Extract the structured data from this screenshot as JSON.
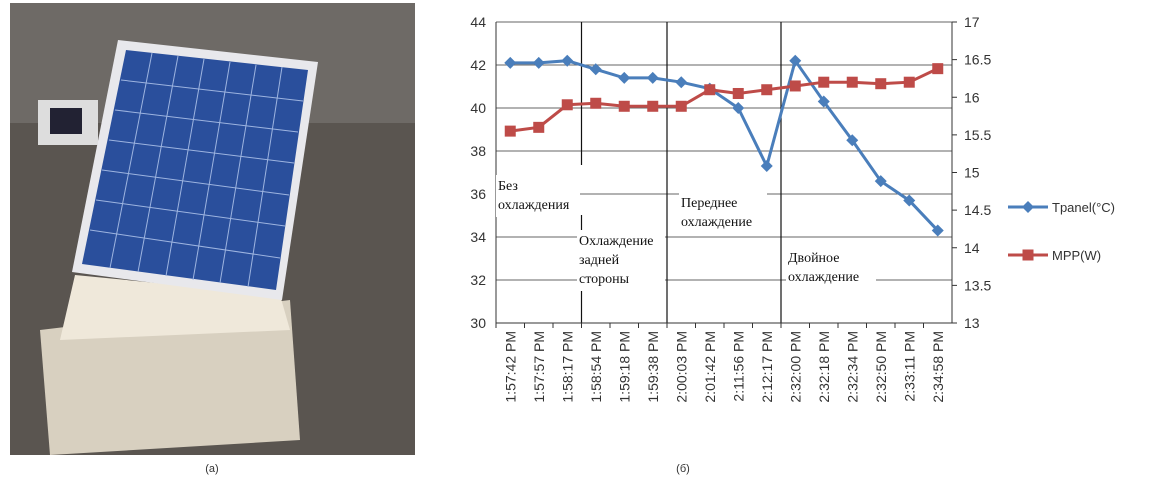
{
  "chart_data": {
    "type": "line",
    "categories": [
      "1:57:42 PM",
      "1:57:57 PM",
      "1:58:17 PM",
      "1:58:54 PM",
      "1:59:18 PM",
      "1:59:38 PM",
      "2:00:03 PM",
      "2:01:42 PM",
      "2:11:56 PM",
      "2:12:17 PM",
      "2:32:00 PM",
      "2:32:18 PM",
      "2:32:34 PM",
      "2:32:50 PM",
      "2:33:11 PM",
      "2:34:58 PM"
    ],
    "series": [
      {
        "name": "Tpanel(°C)",
        "color": "#4a7ebb",
        "values": [
          42.1,
          42.1,
          42.2,
          41.8,
          41.4,
          41.4,
          41.2,
          40.9,
          40.0,
          37.3,
          42.2,
          40.3,
          38.5,
          36.6,
          35.7,
          34.3
        ]
      },
      {
        "name": "MPP(W)",
        "color": "#be4b48",
        "axis": "y2",
        "values": [
          15.55,
          15.6,
          15.9,
          15.92,
          15.88,
          15.88,
          15.88,
          16.1,
          16.05,
          16.1,
          16.15,
          16.2,
          16.2,
          16.18,
          16.2,
          16.38
        ]
      }
    ],
    "ylim": [
      30,
      44
    ],
    "yticks": [
      30,
      32,
      34,
      36,
      38,
      40,
      42,
      44
    ],
    "y2lim": [
      13,
      17
    ],
    "y2ticks": [
      13,
      13.5,
      14,
      14.5,
      15,
      15.5,
      16,
      16.5,
      17
    ],
    "grid": true,
    "legend": "right",
    "annotations": [
      [
        "Без",
        "охлаждения"
      ],
      [
        "Охлаждение",
        "задней",
        "стороны"
      ],
      [
        "Переднее",
        "охлаждение"
      ],
      [
        "Двойное",
        "охлаждение"
      ]
    ],
    "captions": [
      "(a)",
      "(б)"
    ]
  }
}
